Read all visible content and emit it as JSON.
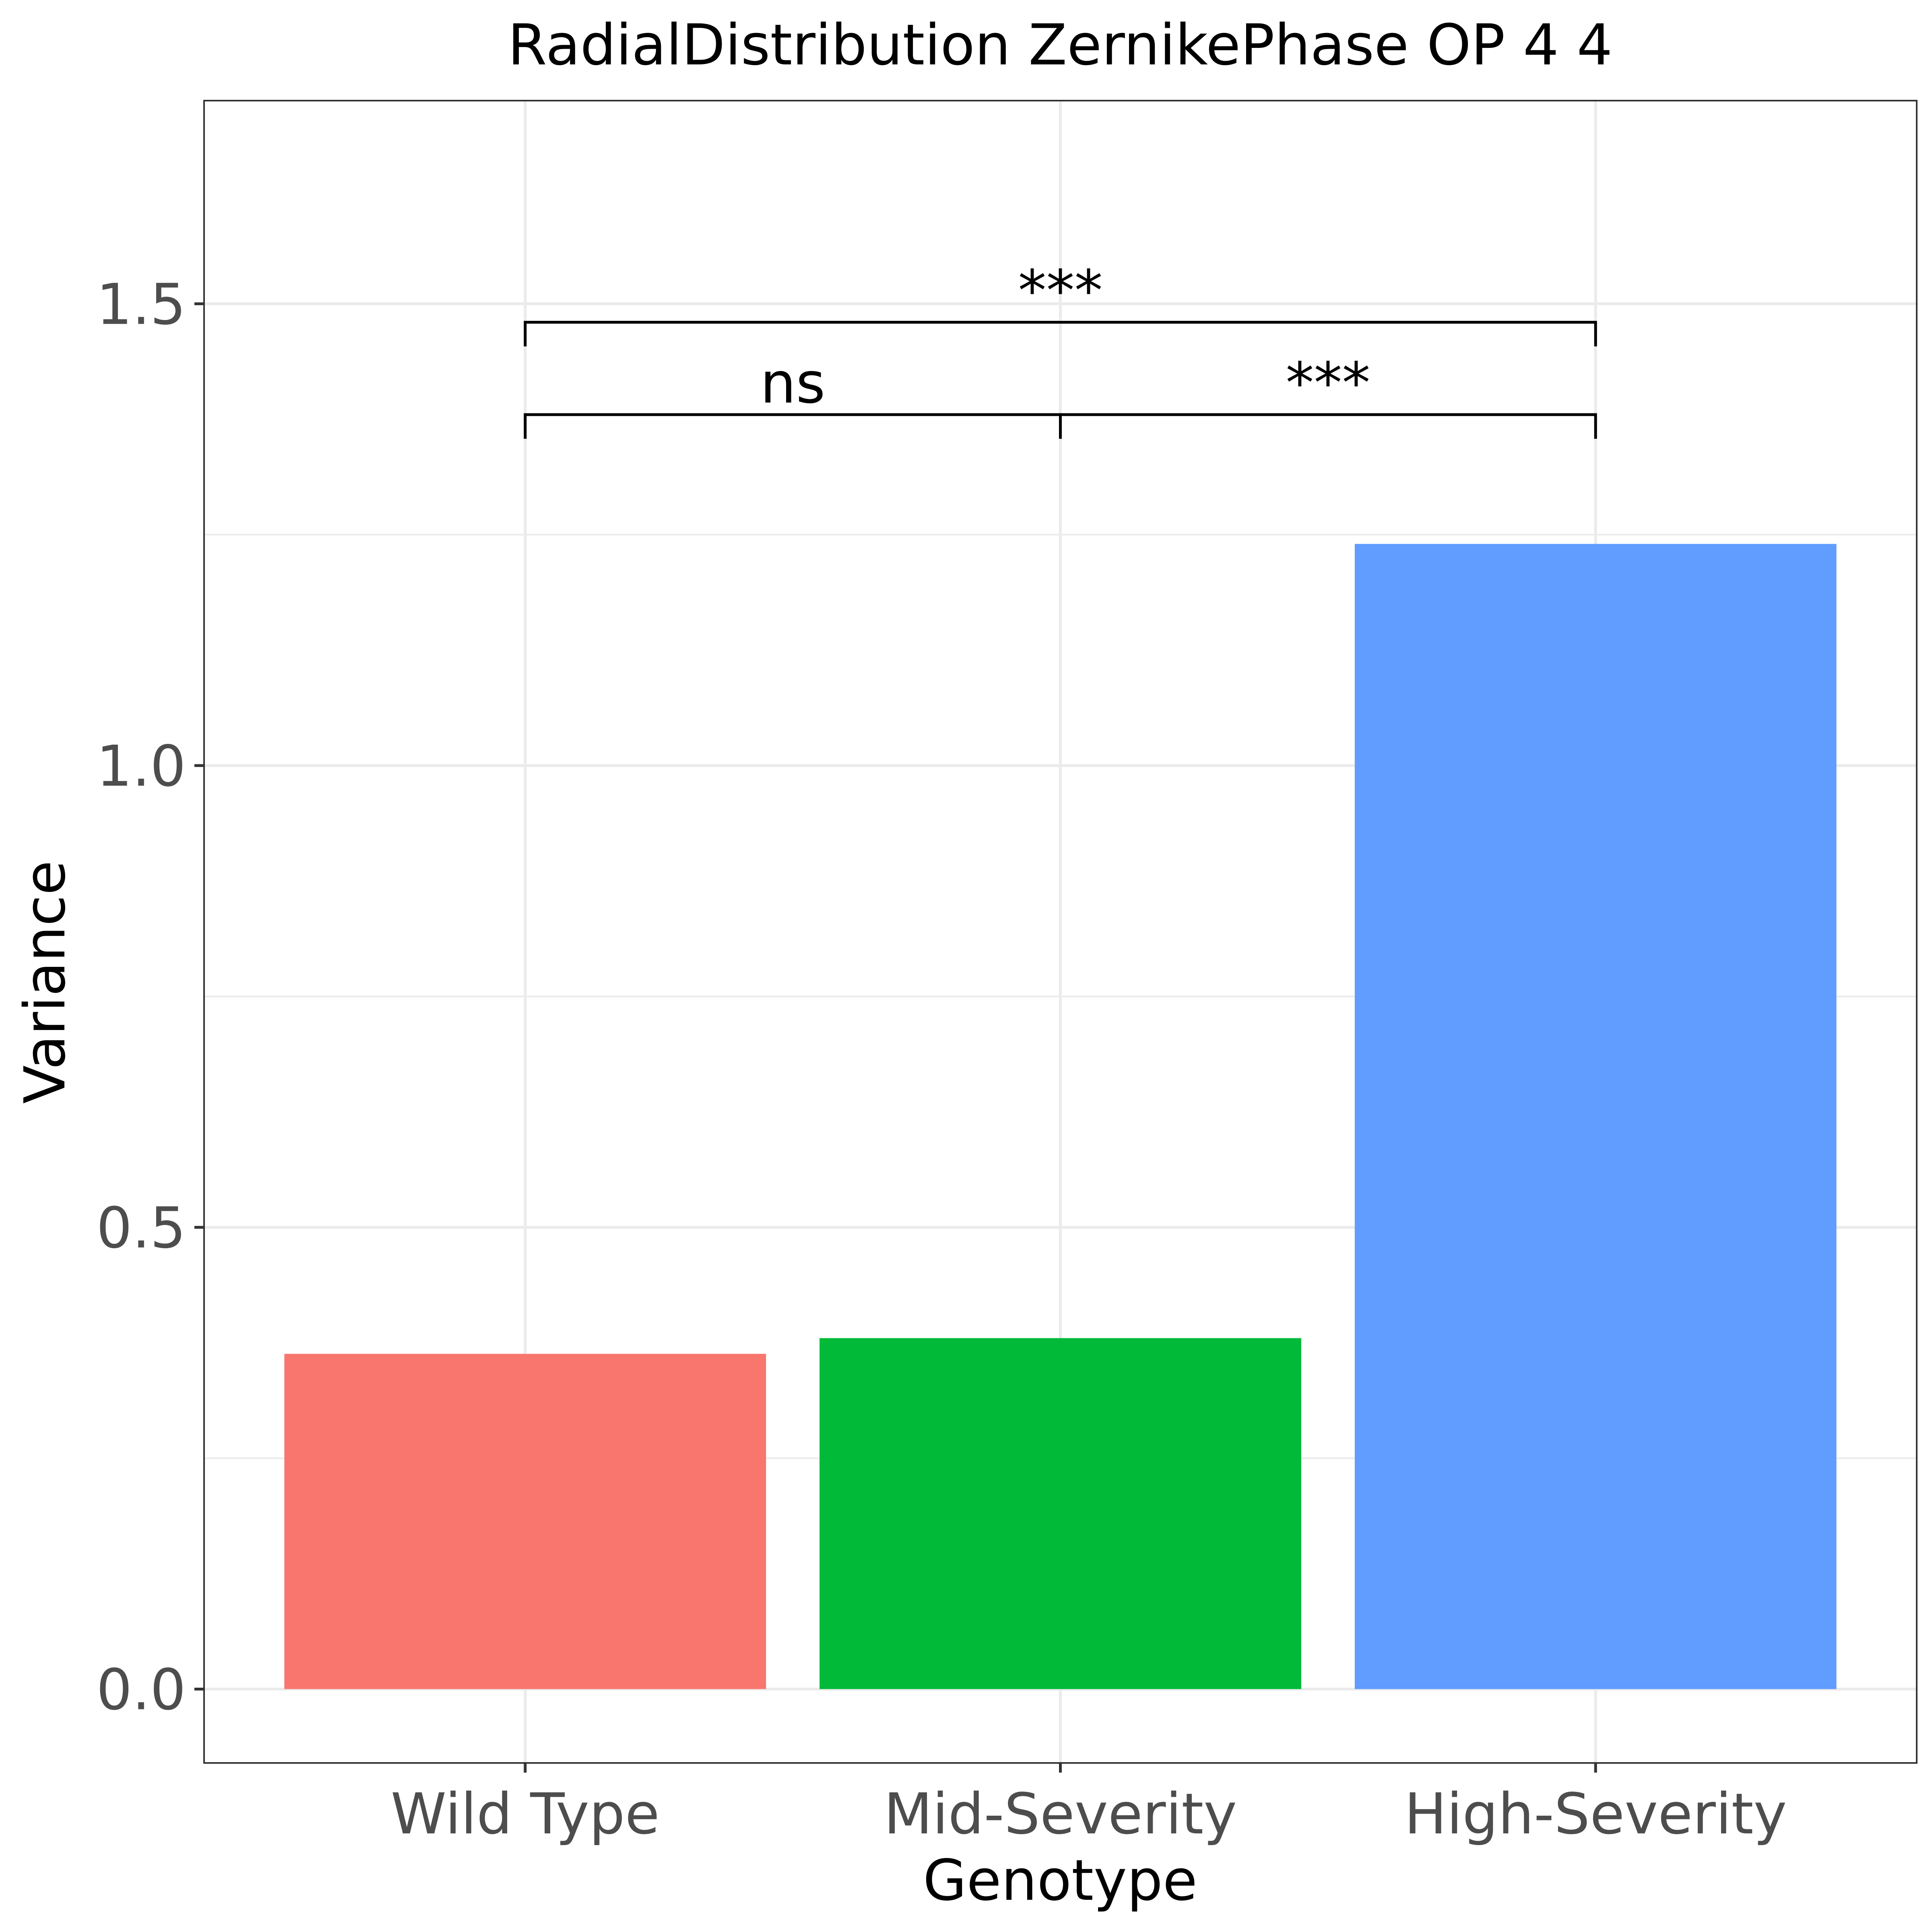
{
  "chart_data": {
    "type": "bar",
    "title": "RadialDistribution ZernikePhase OP 4 4",
    "xlabel": "Genotype",
    "ylabel": "Variance",
    "categories": [
      "Wild Type",
      "Mid-Severity",
      "High-Severity"
    ],
    "values": [
      0.363,
      0.38,
      1.24
    ],
    "colors": [
      "#F8766D",
      "#00BA38",
      "#619CFF"
    ],
    "ylim": [
      -0.08,
      1.72
    ],
    "yticks": [
      0.0,
      0.5,
      1.0,
      1.5
    ],
    "ytick_labels": [
      "0.0",
      "0.5",
      "1.0",
      "1.5"
    ],
    "grid": true,
    "legend": "none",
    "annotations": [
      {
        "from": 0,
        "to": 1,
        "label": "ns",
        "y": 1.38
      },
      {
        "from": 1,
        "to": 2,
        "label": "***",
        "y": 1.38
      },
      {
        "from": 0,
        "to": 2,
        "label": "***",
        "y": 1.48
      }
    ]
  }
}
